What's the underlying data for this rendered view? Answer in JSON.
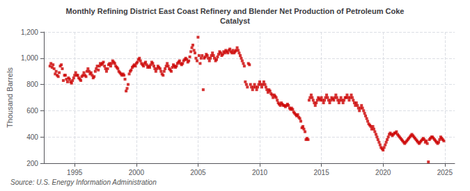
{
  "chart_data": {
    "type": "scatter",
    "title": "Monthly Refining District East Coast Refinery and Blender Net Production of Petroleum Coke\nCatalyst",
    "ylabel": "Thousand Barrels",
    "annotation": "Source: U.S. Energy Information Administration",
    "color": "#cc0000",
    "marker": "square",
    "grid": true,
    "xlim": [
      1992.5,
      2025.8
    ],
    "xticks": [
      1995,
      2000,
      2005,
      2010,
      2015,
      2020,
      2025
    ],
    "ylim": [
      200,
      1200
    ],
    "yticks": [
      200,
      400,
      600,
      800,
      {
        "value": 1000,
        "label": "1,000"
      },
      {
        "value": 1200,
        "label": "1,200"
      }
    ],
    "x": [
      1993.0,
      1993.08,
      1993.17,
      1993.25,
      1993.33,
      1993.42,
      1993.5,
      1993.58,
      1993.67,
      1993.75,
      1993.83,
      1993.92,
      1994.0,
      1994.08,
      1994.17,
      1994.25,
      1994.33,
      1994.42,
      1994.5,
      1994.58,
      1994.67,
      1994.75,
      1994.83,
      1994.92,
      1995.0,
      1995.08,
      1995.17,
      1995.25,
      1995.33,
      1995.42,
      1995.5,
      1995.58,
      1995.67,
      1995.75,
      1995.83,
      1995.92,
      1996.0,
      1996.08,
      1996.17,
      1996.25,
      1996.33,
      1996.42,
      1996.5,
      1996.58,
      1996.67,
      1996.75,
      1996.83,
      1996.92,
      1997.0,
      1997.08,
      1997.17,
      1997.25,
      1997.33,
      1997.42,
      1997.5,
      1997.58,
      1997.67,
      1997.75,
      1997.83,
      1997.92,
      1998.0,
      1998.08,
      1998.17,
      1998.25,
      1998.33,
      1998.42,
      1998.5,
      1998.58,
      1998.67,
      1998.75,
      1998.83,
      1998.92,
      1999.0,
      1999.08,
      1999.17,
      1999.25,
      1999.33,
      1999.42,
      1999.5,
      1999.58,
      1999.67,
      1999.75,
      1999.83,
      1999.92,
      2000.0,
      2000.08,
      2000.17,
      2000.25,
      2000.33,
      2000.42,
      2000.5,
      2000.58,
      2000.67,
      2000.75,
      2000.83,
      2000.92,
      2001.0,
      2001.08,
      2001.17,
      2001.25,
      2001.33,
      2001.42,
      2001.5,
      2001.58,
      2001.67,
      2001.75,
      2001.83,
      2001.92,
      2002.0,
      2002.08,
      2002.17,
      2002.25,
      2002.33,
      2002.42,
      2002.5,
      2002.58,
      2002.67,
      2002.75,
      2002.83,
      2002.92,
      2003.0,
      2003.08,
      2003.17,
      2003.25,
      2003.33,
      2003.42,
      2003.5,
      2003.58,
      2003.67,
      2003.75,
      2003.83,
      2003.92,
      2004.0,
      2004.08,
      2004.17,
      2004.25,
      2004.33,
      2004.42,
      2004.5,
      2004.58,
      2004.67,
      2004.75,
      2004.83,
      2004.92,
      2005.0,
      2005.08,
      2005.17,
      2005.25,
      2005.33,
      2005.42,
      2005.5,
      2005.58,
      2005.67,
      2005.75,
      2005.83,
      2005.92,
      2006.0,
      2006.08,
      2006.17,
      2006.25,
      2006.33,
      2006.42,
      2006.5,
      2006.58,
      2006.67,
      2006.75,
      2006.83,
      2006.92,
      2007.0,
      2007.08,
      2007.17,
      2007.25,
      2007.33,
      2007.42,
      2007.5,
      2007.58,
      2007.67,
      2007.75,
      2007.83,
      2007.92,
      2008.0,
      2008.08,
      2008.17,
      2008.25,
      2008.33,
      2008.42,
      2008.5,
      2008.58,
      2008.67,
      2008.75,
      2008.83,
      2008.92,
      2009.0,
      2009.08,
      2009.17,
      2009.25,
      2009.33,
      2009.42,
      2009.5,
      2009.58,
      2009.67,
      2009.75,
      2009.83,
      2009.92,
      2010.0,
      2010.08,
      2010.17,
      2010.25,
      2010.33,
      2010.42,
      2010.5,
      2010.58,
      2010.67,
      2010.75,
      2010.83,
      2010.92,
      2011.0,
      2011.08,
      2011.17,
      2011.25,
      2011.33,
      2011.42,
      2011.5,
      2011.58,
      2011.67,
      2011.75,
      2011.83,
      2011.92,
      2012.0,
      2012.08,
      2012.17,
      2012.25,
      2012.33,
      2012.42,
      2012.5,
      2012.58,
      2012.67,
      2012.75,
      2012.83,
      2012.92,
      2013.0,
      2013.08,
      2013.17,
      2013.25,
      2013.33,
      2013.42,
      2013.5,
      2013.58,
      2013.67,
      2013.75,
      2013.83,
      2013.92,
      2014.0,
      2014.08,
      2014.17,
      2014.25,
      2014.33,
      2014.42,
      2014.5,
      2014.58,
      2014.67,
      2014.75,
      2014.83,
      2014.92,
      2015.0,
      2015.08,
      2015.17,
      2015.25,
      2015.33,
      2015.42,
      2015.5,
      2015.58,
      2015.67,
      2015.75,
      2015.83,
      2015.92,
      2016.0,
      2016.08,
      2016.17,
      2016.25,
      2016.33,
      2016.42,
      2016.5,
      2016.58,
      2016.67,
      2016.75,
      2016.83,
      2016.92,
      2017.0,
      2017.08,
      2017.17,
      2017.25,
      2017.33,
      2017.42,
      2017.5,
      2017.58,
      2017.67,
      2017.75,
      2017.83,
      2017.92,
      2018.0,
      2018.08,
      2018.17,
      2018.25,
      2018.33,
      2018.42,
      2018.5,
      2018.58,
      2018.67,
      2018.75,
      2018.83,
      2018.92,
      2019.0,
      2019.08,
      2019.17,
      2019.25,
      2019.33,
      2019.42,
      2019.5,
      2019.58,
      2019.67,
      2019.75,
      2019.83,
      2019.92,
      2020.0,
      2020.08,
      2020.17,
      2020.25,
      2020.33,
      2020.42,
      2020.5,
      2020.58,
      2020.67,
      2020.75,
      2020.83,
      2020.92,
      2021.0,
      2021.08,
      2021.17,
      2021.25,
      2021.33,
      2021.42,
      2021.5,
      2021.58,
      2021.67,
      2021.75,
      2021.83,
      2021.92,
      2022.0,
      2022.08,
      2022.17,
      2022.25,
      2022.33,
      2022.42,
      2022.5,
      2022.58,
      2022.67,
      2022.75,
      2022.83,
      2022.92,
      2023.0,
      2023.08,
      2023.17,
      2023.25,
      2023.33,
      2023.42,
      2023.5,
      2023.58,
      2023.67,
      2023.75,
      2023.83,
      2023.92,
      2024.0,
      2024.08,
      2024.17,
      2024.25,
      2024.33,
      2024.42,
      2024.5,
      2024.58,
      2024.67,
      2024.75,
      2024.83,
      2024.92
    ],
    "values": [
      940,
      960,
      930,
      950,
      920,
      880,
      900,
      870,
      860,
      890,
      940,
      950,
      920,
      830,
      870,
      870,
      840,
      820,
      850,
      840,
      820,
      810,
      830,
      850,
      870,
      890,
      870,
      870,
      850,
      840,
      830,
      860,
      870,
      890,
      870,
      860,
      900,
      920,
      900,
      880,
      890,
      870,
      850,
      860,
      900,
      920,
      940,
      910,
      940,
      960,
      950,
      960,
      970,
      940,
      920,
      900,
      920,
      950,
      960,
      940,
      960,
      980,
      970,
      960,
      940,
      930,
      920,
      900,
      890,
      880,
      870,
      880,
      870,
      840,
      750,
      770,
      800,
      880,
      900,
      910,
      930,
      940,
      950,
      940,
      960,
      970,
      990,
      1000,
      980,
      960,
      950,
      940,
      960,
      970,
      950,
      930,
      940,
      930,
      950,
      970,
      960,
      940,
      920,
      900,
      920,
      940,
      930,
      920,
      900,
      880,
      870,
      900,
      920,
      940,
      960,
      940,
      920,
      910,
      900,
      930,
      950,
      940,
      930,
      940,
      960,
      970,
      980,
      960,
      950,
      960,
      980,
      990,
      1000,
      990,
      970,
      980,
      1010,
      1050,
      1080,
      1100,
      1060,
      1040,
      1000,
      980,
      1160,
      1020,
      960,
      1000,
      1020,
      760,
      1000,
      1010,
      1030,
      1020,
      1000,
      980,
      1000,
      1020,
      1040,
      1020,
      1000,
      980,
      990,
      1010,
      1030,
      1050,
      1040,
      1020,
      1030,
      1050,
      1040,
      1060,
      1050,
      1040,
      1060,
      1070,
      1050,
      1040,
      1060,
      1040,
      1050,
      1060,
      1080,
      1060,
      1040,
      1020,
      1000,
      980,
      960,
      940,
      820,
      800,
      780,
      960,
      950,
      800,
      780,
      760,
      780,
      800,
      780,
      760,
      780,
      800,
      820,
      800,
      780,
      800,
      820,
      800,
      780,
      760,
      740,
      760,
      750,
      730,
      720,
      700,
      720,
      710,
      700,
      680,
      660,
      650,
      640,
      660,
      650,
      640,
      640,
      630,
      640,
      650,
      640,
      620,
      610,
      620,
      610,
      590,
      580,
      570,
      560,
      570,
      550,
      540,
      520,
      470,
      480,
      460,
      440,
      380,
      390,
      380,
      680,
      700,
      720,
      700,
      680,
      660,
      640,
      660,
      680,
      700,
      690,
      680,
      700,
      680,
      660,
      680,
      700,
      720,
      700,
      680,
      660,
      680,
      700,
      690,
      680,
      700,
      720,
      700,
      680,
      660,
      680,
      700,
      680,
      660,
      680,
      700,
      700,
      720,
      700,
      680,
      700,
      720,
      700,
      680,
      660,
      640,
      660,
      640,
      620,
      600,
      620,
      640,
      620,
      600,
      580,
      560,
      540,
      520,
      500,
      490,
      480,
      460,
      480,
      460,
      440,
      420,
      400,
      380,
      360,
      340,
      320,
      310,
      300,
      320,
      340,
      360,
      380,
      400,
      420,
      430,
      420,
      410,
      420,
      430,
      430,
      440,
      420,
      410,
      400,
      390,
      380,
      370,
      360,
      350,
      360,
      370,
      380,
      390,
      400,
      410,
      420,
      410,
      400,
      390,
      380,
      370,
      360,
      350,
      360,
      370,
      380,
      390,
      380,
      360,
      370,
      350,
      210,
      380,
      390,
      400,
      400,
      390,
      380,
      370,
      360,
      350,
      360,
      380,
      400,
      390,
      380,
      370
    ]
  }
}
